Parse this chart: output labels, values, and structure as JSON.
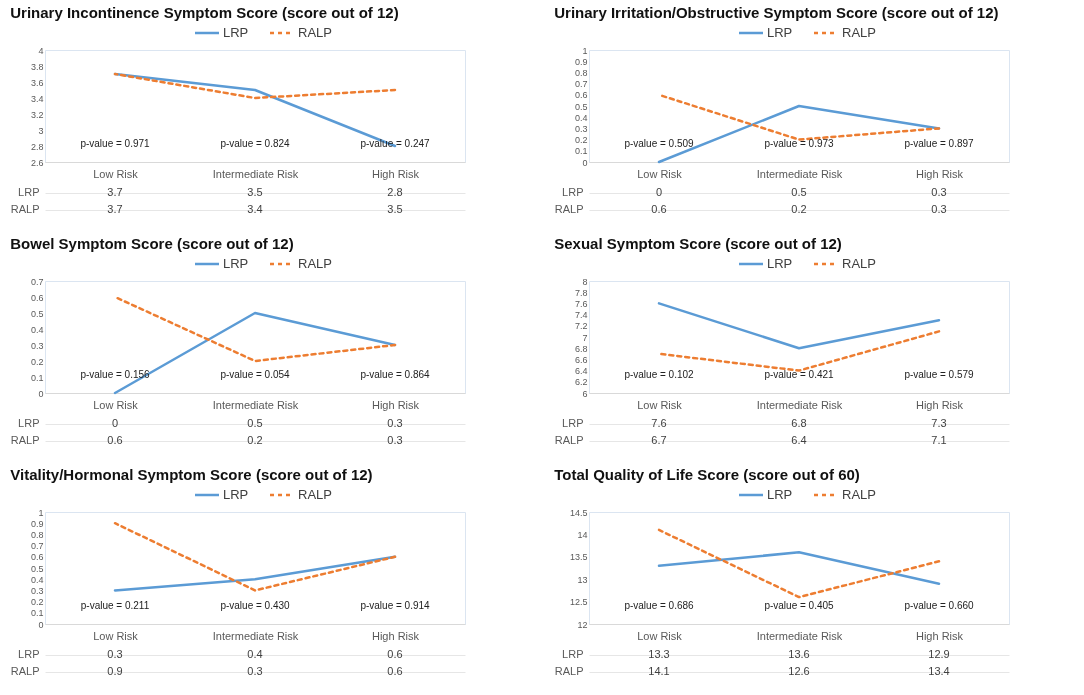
{
  "chart_data": [
    {
      "type": "line",
      "title": "Urinary Incontinence Symptom Score (score out of 12)",
      "categories": [
        "Low Risk",
        "Intermediate Risk",
        "High Risk"
      ],
      "series": [
        {
          "name": "LRP",
          "color": "#5b9bd5",
          "line_style": "solid",
          "values": [
            3.7,
            3.5,
            2.8
          ]
        },
        {
          "name": "RALP",
          "color": "#ed7d31",
          "line_style": "dashed",
          "values": [
            3.7,
            3.4,
            3.5
          ]
        }
      ],
      "ylim": [
        2.6,
        4
      ],
      "yticks": [
        2.6,
        2.8,
        3,
        3.2,
        3.4,
        3.6,
        3.8,
        4
      ],
      "legend": "top",
      "data_labels": true,
      "annotations": [
        "p-value = 0.971",
        "p-value = 0.824",
        "p-value = 0.247"
      ]
    },
    {
      "type": "line",
      "title": "Urinary Irritation/Obstructive Symptom Score (score out of 12)",
      "categories": [
        "Low Risk",
        "Intermediate Risk",
        "High Risk"
      ],
      "series": [
        {
          "name": "LRP",
          "color": "#5b9bd5",
          "line_style": "solid",
          "values": [
            0,
            0.5,
            0.3
          ]
        },
        {
          "name": "RALP",
          "color": "#ed7d31",
          "line_style": "dashed",
          "values": [
            0.6,
            0.2,
            0.3
          ]
        }
      ],
      "ylim": [
        0,
        1
      ],
      "yticks": [
        0,
        0.1,
        0.2,
        0.3,
        0.4,
        0.5,
        0.6,
        0.7,
        0.8,
        0.9,
        1
      ],
      "legend": "top",
      "data_labels": true,
      "annotations": [
        "p-value = 0.509",
        "p-value = 0.973",
        "p-value = 0.897"
      ]
    },
    {
      "type": "line",
      "title": "Bowel Symptom Score (score out of 12)",
      "categories": [
        "Low Risk",
        "Intermediate Risk",
        "High Risk"
      ],
      "series": [
        {
          "name": "LRP",
          "color": "#5b9bd5",
          "line_style": "solid",
          "values": [
            0,
            0.5,
            0.3
          ]
        },
        {
          "name": "RALP",
          "color": "#ed7d31",
          "line_style": "dashed",
          "values": [
            0.6,
            0.2,
            0.3
          ]
        }
      ],
      "ylim": [
        0,
        0.7
      ],
      "yticks": [
        0,
        0.1,
        0.2,
        0.3,
        0.4,
        0.5,
        0.6,
        0.7
      ],
      "legend": "top",
      "data_labels": true,
      "annotations": [
        "p-value = 0.156",
        "p-value = 0.054",
        "p-value = 0.864"
      ]
    },
    {
      "type": "line",
      "title": "Sexual Symptom Score (score out of 12)",
      "categories": [
        "Low Risk",
        "Intermediate Risk",
        "High Risk"
      ],
      "series": [
        {
          "name": "LRP",
          "color": "#5b9bd5",
          "line_style": "solid",
          "values": [
            7.6,
            6.8,
            7.3
          ]
        },
        {
          "name": "RALP",
          "color": "#ed7d31",
          "line_style": "dashed",
          "values": [
            6.7,
            6.4,
            7.1
          ]
        }
      ],
      "ylim": [
        6,
        8
      ],
      "yticks": [
        6,
        6.2,
        6.4,
        6.6,
        6.8,
        7,
        7.2,
        7.4,
        7.6,
        7.8,
        8
      ],
      "legend": "top",
      "data_labels": true,
      "annotations": [
        "p-value = 0.102",
        "p-value = 0.421",
        "p-value = 0.579"
      ]
    },
    {
      "type": "line",
      "title": "Vitality/Hormonal Symptom Score (score out of 12)",
      "categories": [
        "Low Risk",
        "Intermediate Risk",
        "High Risk"
      ],
      "series": [
        {
          "name": "LRP",
          "color": "#5b9bd5",
          "line_style": "solid",
          "values": [
            0.3,
            0.4,
            0.6
          ]
        },
        {
          "name": "RALP",
          "color": "#ed7d31",
          "line_style": "dashed",
          "values": [
            0.9,
            0.3,
            0.6
          ]
        }
      ],
      "ylim": [
        0,
        1
      ],
      "yticks": [
        0,
        0.1,
        0.2,
        0.3,
        0.4,
        0.5,
        0.6,
        0.7,
        0.8,
        0.9,
        1
      ],
      "legend": "top",
      "data_labels": true,
      "annotations": [
        "p-value = 0.211",
        "p-value = 0.430",
        "p-value = 0.914"
      ]
    },
    {
      "type": "line",
      "title": "Total Quality of Life Score (score out of 60)",
      "categories": [
        "Low Risk",
        "Intermediate Risk",
        "High Risk"
      ],
      "series": [
        {
          "name": "LRP",
          "color": "#5b9bd5",
          "line_style": "solid",
          "values": [
            13.3,
            13.6,
            12.9
          ]
        },
        {
          "name": "RALP",
          "color": "#ed7d31",
          "line_style": "dashed",
          "values": [
            14.1,
            12.6,
            13.4
          ]
        }
      ],
      "ylim": [
        12,
        14.5
      ],
      "yticks": [
        12,
        12.5,
        13,
        13.5,
        14,
        14.5
      ],
      "legend": "top",
      "data_labels": true,
      "annotations": [
        "p-value = 0.686",
        "p-value = 0.405",
        "p-value = 0.660"
      ]
    }
  ]
}
